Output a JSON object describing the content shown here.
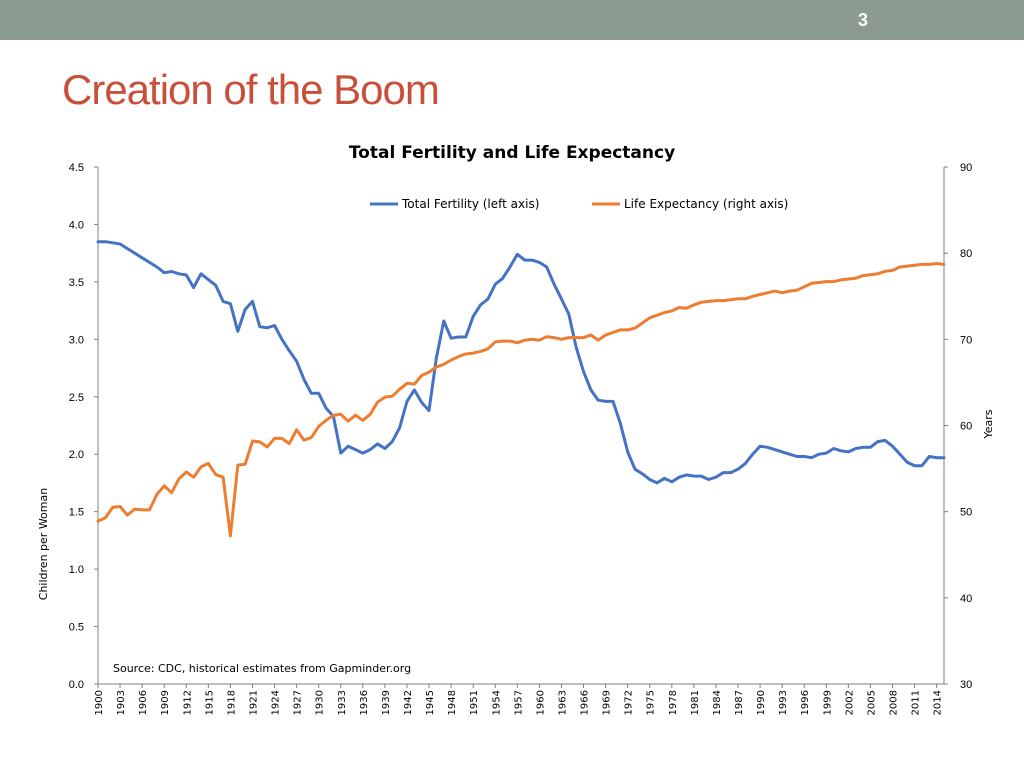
{
  "slide": {
    "number": "3",
    "title": "Creation of the Boom",
    "bar_color": "#8c9b92",
    "title_color": "#c8503a"
  },
  "chart_data": {
    "type": "line",
    "title": "Total Fertility and Life Expectancy",
    "ylabel": "Children per Woman",
    "ylabel_right": "Years",
    "ylim": [
      0,
      4.5
    ],
    "ylim_right": [
      30,
      90
    ],
    "yticks": [
      "0.0",
      "0.5",
      "1.0",
      "1.5",
      "2.0",
      "2.5",
      "3.0",
      "3.5",
      "4.0",
      "4.5"
    ],
    "yticks_right": [
      "30",
      "40",
      "50",
      "60",
      "70",
      "80",
      "90"
    ],
    "xticks": [
      "1900",
      "1903",
      "1906",
      "1909",
      "1912",
      "1915",
      "1918",
      "1921",
      "1924",
      "1927",
      "1930",
      "1933",
      "1936",
      "1939",
      "1942",
      "1945",
      "1948",
      "1951",
      "1954",
      "1957",
      "1960",
      "1963",
      "1966",
      "1969",
      "1972",
      "1975",
      "1978",
      "1981",
      "1984",
      "1987",
      "1990",
      "1993",
      "1996",
      "1999",
      "2002",
      "2005",
      "2008",
      "2011",
      "2014"
    ],
    "legend_position": "top-center",
    "grid": false,
    "source": "Source: CDC, historical estimates  from Gapminder.org",
    "x_start": 1900,
    "x_end": 2015,
    "series": [
      {
        "name": "Total Fertility (left axis)",
        "axis": "left",
        "color": "#4472c4",
        "values": [
          3.85,
          3.85,
          3.84,
          3.83,
          3.79,
          3.75,
          3.71,
          3.67,
          3.63,
          3.58,
          3.59,
          3.57,
          3.56,
          3.45,
          3.57,
          3.52,
          3.47,
          3.33,
          3.31,
          3.07,
          3.26,
          3.33,
          3.11,
          3.1,
          3.12,
          3.0,
          2.9,
          2.81,
          2.65,
          2.53,
          2.53,
          2.4,
          2.33,
          2.01,
          2.07,
          2.04,
          2.01,
          2.04,
          2.09,
          2.05,
          2.11,
          2.23,
          2.46,
          2.56,
          2.45,
          2.38,
          2.84,
          3.16,
          3.01,
          3.02,
          3.02,
          3.2,
          3.3,
          3.35,
          3.48,
          3.53,
          3.63,
          3.74,
          3.69,
          3.69,
          3.67,
          3.63,
          3.48,
          3.35,
          3.22,
          2.93,
          2.72,
          2.56,
          2.47,
          2.46,
          2.46,
          2.27,
          2.02,
          1.87,
          1.83,
          1.78,
          1.75,
          1.79,
          1.76,
          1.8,
          1.82,
          1.81,
          1.81,
          1.78,
          1.8,
          1.84,
          1.84,
          1.87,
          1.92,
          2.0,
          2.07,
          2.06,
          2.04,
          2.02,
          2.0,
          1.98,
          1.98,
          1.97,
          2.0,
          2.01,
          2.05,
          2.03,
          2.02,
          2.05,
          2.06,
          2.06,
          2.11,
          2.12,
          2.07,
          2.0,
          1.93,
          1.9,
          1.9,
          1.98,
          1.97,
          1.97
        ]
      },
      {
        "name": "Life Expectancy (right axis)",
        "axis": "right",
        "color": "#ed7d31",
        "values": [
          48.9,
          49.3,
          50.5,
          50.6,
          49.6,
          50.3,
          50.2,
          50.2,
          52.0,
          53.0,
          52.2,
          53.8,
          54.6,
          54.0,
          55.2,
          55.6,
          54.3,
          54.0,
          47.2,
          55.4,
          55.5,
          58.2,
          58.1,
          57.5,
          58.5,
          58.5,
          57.9,
          59.5,
          58.3,
          58.6,
          59.9,
          60.6,
          61.2,
          61.3,
          60.5,
          61.2,
          60.6,
          61.3,
          62.7,
          63.3,
          63.4,
          64.2,
          64.9,
          64.8,
          65.8,
          66.2,
          66.8,
          67.1,
          67.6,
          68.0,
          68.3,
          68.4,
          68.6,
          68.9,
          69.7,
          69.8,
          69.8,
          69.6,
          69.9,
          70.0,
          69.9,
          70.3,
          70.2,
          70.0,
          70.2,
          70.2,
          70.2,
          70.5,
          69.9,
          70.5,
          70.8,
          71.1,
          71.1,
          71.3,
          71.9,
          72.5,
          72.8,
          73.1,
          73.3,
          73.7,
          73.6,
          74.0,
          74.3,
          74.4,
          74.5,
          74.5,
          74.6,
          74.7,
          74.7,
          75.0,
          75.2,
          75.4,
          75.6,
          75.4,
          75.6,
          75.7,
          76.1,
          76.5,
          76.6,
          76.7,
          76.7,
          76.9,
          77.0,
          77.1,
          77.4,
          77.5,
          77.6,
          77.9,
          78.0,
          78.4,
          78.5,
          78.6,
          78.7,
          78.7,
          78.8,
          78.7
        ]
      }
    ]
  }
}
